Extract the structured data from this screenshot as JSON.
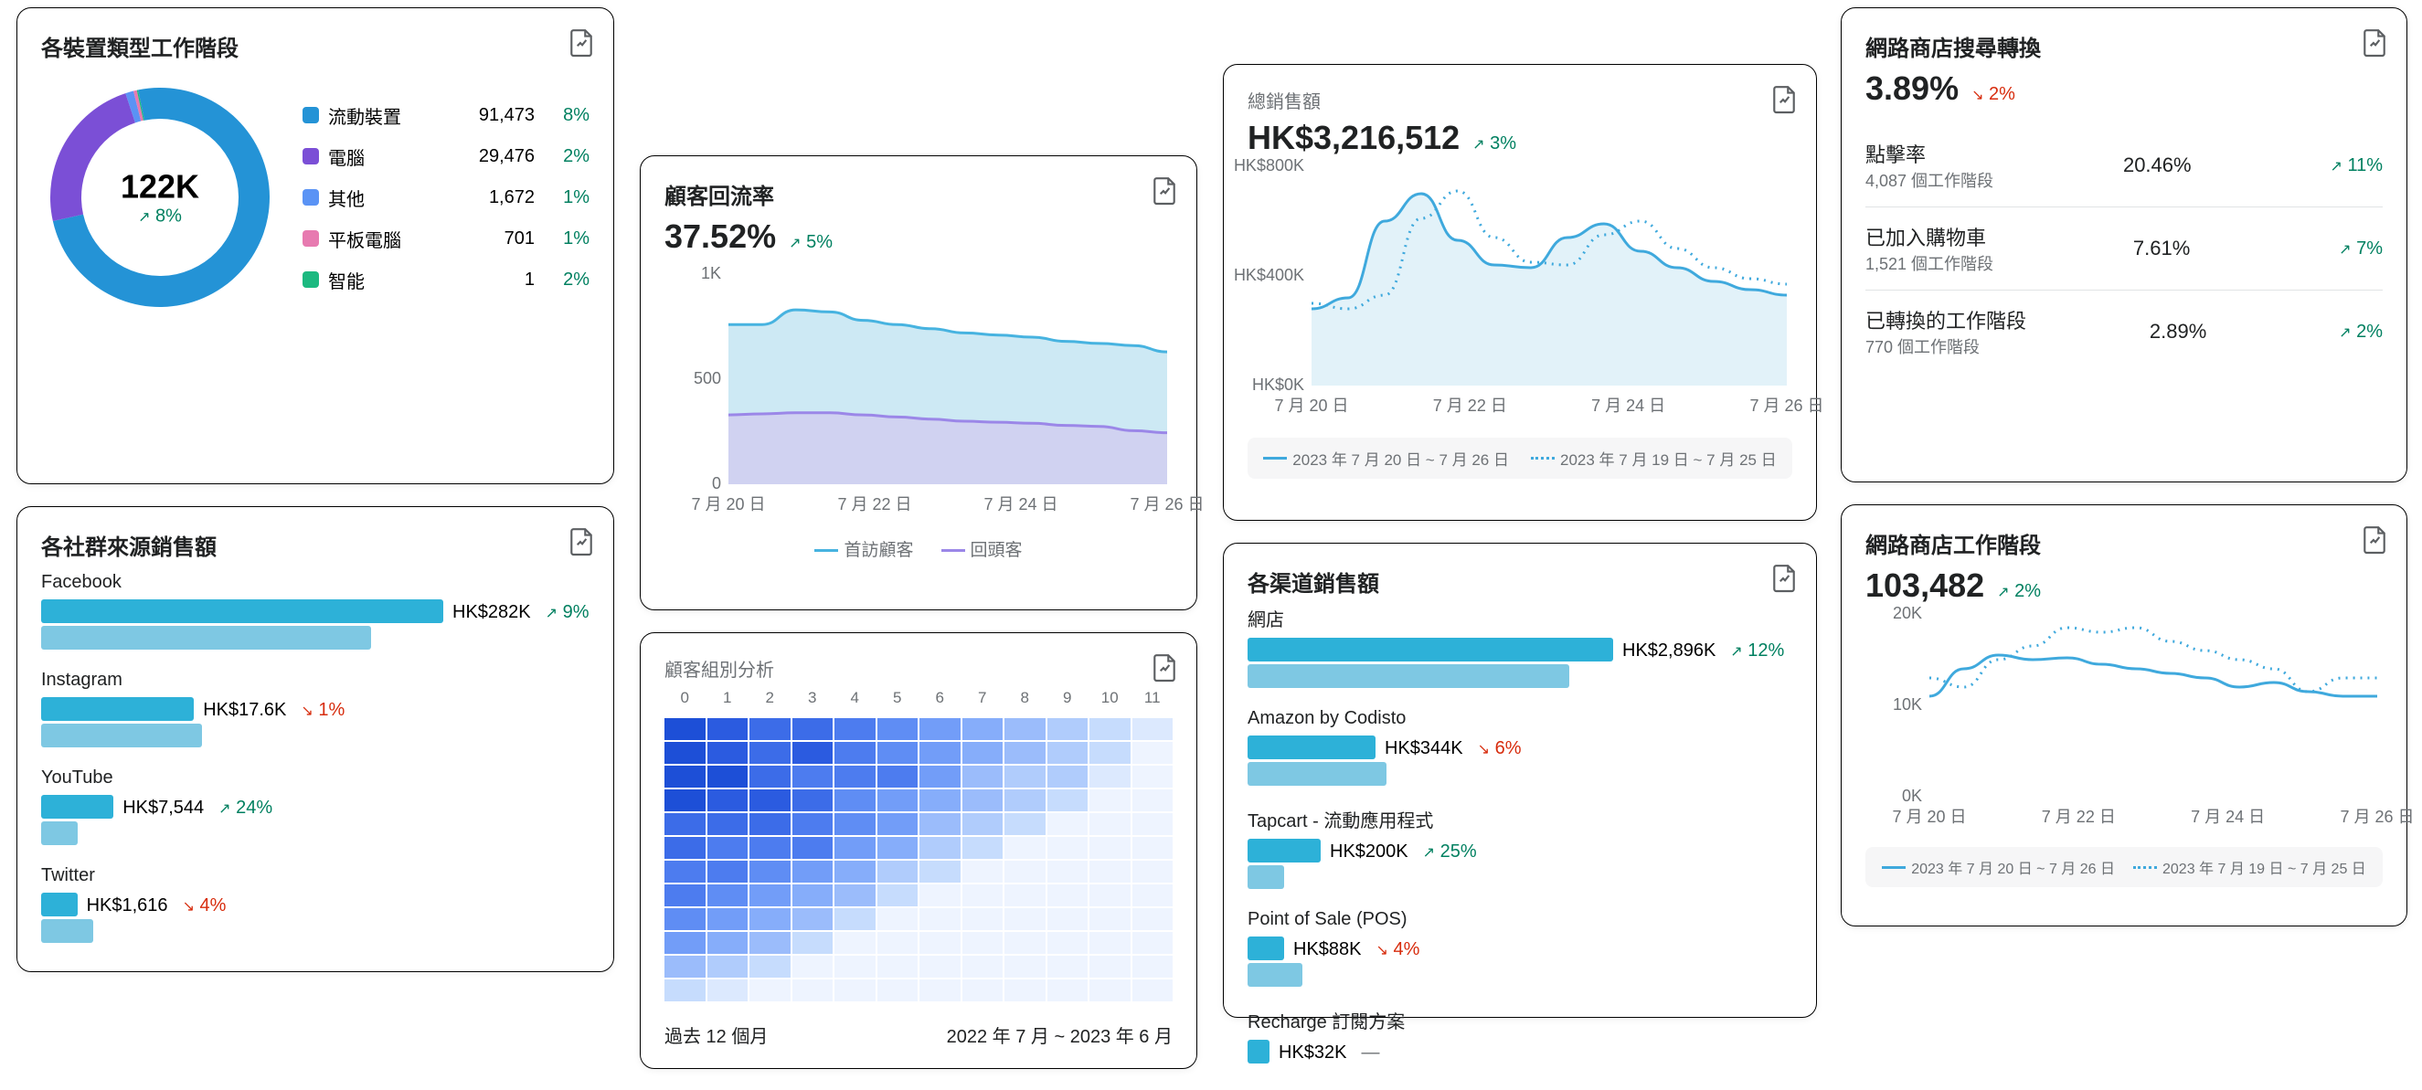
{
  "colors": {
    "text": "#202223",
    "muted": "#6d7175",
    "up": "#008060",
    "down": "#d72c0d",
    "bg": "#ffffff"
  },
  "donut": {
    "title": "各裝置類型工作階段",
    "total_label": "122K",
    "total_change": "8%",
    "change_dir": "up",
    "segments": [
      {
        "name": "流動裝置",
        "value": "91,473",
        "pct": "8%",
        "color": "#2493d6",
        "frac": 0.747
      },
      {
        "name": "電腦",
        "value": "29,476",
        "pct": "2%",
        "color": "#7b4fd6",
        "frac": 0.234
      },
      {
        "name": "其他",
        "value": "1,672",
        "pct": "1%",
        "color": "#5a93f5",
        "frac": 0.012
      },
      {
        "name": "平板電腦",
        "value": "701",
        "pct": "1%",
        "color": "#e77ab0",
        "frac": 0.005
      },
      {
        "name": "智能",
        "value": "1",
        "pct": "2%",
        "color": "#1cb980",
        "frac": 0.002
      }
    ],
    "donut_bg": "#ffffff",
    "ring_width": 34
  },
  "social": {
    "title": "各社群來源銷售額",
    "bar_color_a": "#2db1d8",
    "bar_color_b": "#7ec8e3",
    "max_width": 440,
    "items": [
      {
        "name": "Facebook",
        "value": "HK$282K",
        "delta": "9%",
        "dir": "up",
        "a": 1.0,
        "b": 0.82
      },
      {
        "name": "Instagram",
        "value": "HK$17.6K",
        "delta": "1%",
        "dir": "down",
        "a": 0.38,
        "b": 0.4
      },
      {
        "name": "YouTube",
        "value": "HK$7,544",
        "delta": "24%",
        "dir": "up",
        "a": 0.18,
        "b": 0.09
      },
      {
        "name": "Twitter",
        "value": "HK$1,616",
        "delta": "4%",
        "dir": "down",
        "a": 0.09,
        "b": 0.13
      }
    ]
  },
  "return": {
    "title": "顧客回流率",
    "value": "37.52%",
    "delta": "5%",
    "dir": "up",
    "ylabels": [
      "1K",
      "500",
      "0"
    ],
    "ymax": 1000,
    "xlabels": [
      "7 月 20 日",
      "7 月 22 日",
      "7 月 24 日",
      "7 月 26 日"
    ],
    "series": [
      {
        "name": "首訪顧客",
        "color": "#47b3e0",
        "fill": "#b8e0f0",
        "data": [
          760,
          760,
          830,
          820,
          780,
          760,
          740,
          720,
          710,
          700,
          680,
          670,
          660,
          630
        ]
      },
      {
        "name": "回頭客",
        "color": "#9b87e8",
        "fill": "#d1c8f0",
        "data": [
          330,
          335,
          340,
          340,
          330,
          320,
          310,
          300,
          295,
          290,
          280,
          275,
          255,
          245
        ]
      }
    ]
  },
  "cohort": {
    "title": "顧客組別分析",
    "cols": 12,
    "headers": [
      "0",
      "1",
      "2",
      "3",
      "4",
      "5",
      "6",
      "7",
      "8",
      "9",
      "10",
      "11"
    ],
    "footer_left": "過去 12 個月",
    "footer_right": "2022 年 7 月 ~ 2023 年 6 月",
    "color_scale": [
      "#1d4fd7",
      "#2b5be0",
      "#3c6ce8",
      "#4d7cef",
      "#5f8df4",
      "#729df8",
      "#86adfa",
      "#9bbcfb",
      "#b0ccfc",
      "#c6dcfd",
      "#dce9fe",
      "#eef4ff"
    ],
    "rows": [
      [
        0,
        1,
        2,
        2,
        3,
        4,
        5,
        6,
        7,
        8,
        9,
        10
      ],
      [
        0,
        1,
        2,
        1,
        3,
        4,
        5,
        6,
        7,
        8,
        9,
        11
      ],
      [
        0,
        0,
        2,
        3,
        3,
        3,
        5,
        7,
        8,
        8,
        10,
        11
      ],
      [
        0,
        1,
        1,
        2,
        4,
        5,
        6,
        7,
        8,
        9,
        11,
        11
      ],
      [
        2,
        2,
        2,
        3,
        4,
        5,
        7,
        8,
        9,
        11,
        11,
        11
      ],
      [
        2,
        3,
        3,
        3,
        5,
        6,
        8,
        9,
        11,
        11,
        11,
        11
      ],
      [
        3,
        3,
        4,
        5,
        6,
        8,
        9,
        11,
        11,
        11,
        11,
        11
      ],
      [
        3,
        4,
        5,
        6,
        7,
        9,
        11,
        11,
        11,
        11,
        11,
        11
      ],
      [
        4,
        5,
        6,
        7,
        9,
        11,
        11,
        11,
        11,
        11,
        11,
        11
      ],
      [
        5,
        6,
        7,
        9,
        11,
        11,
        11,
        11,
        11,
        11,
        11,
        11
      ],
      [
        7,
        8,
        9,
        11,
        11,
        11,
        11,
        11,
        11,
        11,
        11,
        11
      ],
      [
        9,
        10,
        11,
        11,
        11,
        11,
        11,
        11,
        11,
        11,
        11,
        11
      ]
    ]
  },
  "total": {
    "title": "總銷售額",
    "value": "HK$3,216,512",
    "delta": "3%",
    "dir": "up",
    "ylabels": [
      "HK$800K",
      "HK$400K",
      "HK$0K"
    ],
    "ymax": 800,
    "xlabels": [
      "7 月 20 日",
      "7 月 22 日",
      "7 月 24 日",
      "7 月 26 日"
    ],
    "series": [
      {
        "name": "2023 年 7 月 20 日 ~ 7 月 26 日",
        "style": "solid",
        "color": "#3fa9dd",
        "fill": "#d5ecf7",
        "data": [
          280,
          320,
          600,
          700,
          530,
          440,
          430,
          540,
          590,
          490,
          430,
          380,
          350,
          330
        ]
      },
      {
        "name": "2023 年 7 月 19 日 ~ 7 月 25 日",
        "style": "dotted",
        "color": "#3fa9dd",
        "data": [
          300,
          280,
          330,
          610,
          710,
          540,
          450,
          440,
          550,
          600,
          500,
          430,
          390,
          370
        ]
      }
    ]
  },
  "channel": {
    "title": "各渠道銷售額",
    "bar_color_a": "#2db1d8",
    "bar_color_b": "#7ec8e3",
    "max_width": 400,
    "items": [
      {
        "name": "網店",
        "value": "HK$2,896K",
        "delta": "12%",
        "dir": "up",
        "a": 1.0,
        "b": 0.88
      },
      {
        "name": "Amazon by Codisto",
        "value": "HK$344K",
        "delta": "6%",
        "dir": "down",
        "a": 0.35,
        "b": 0.38
      },
      {
        "name": "Tapcart - 流動應用程式",
        "value": "HK$200K",
        "delta": "25%",
        "dir": "up",
        "a": 0.2,
        "b": 0.1
      },
      {
        "name": "Point of Sale (POS)",
        "value": "HK$88K",
        "delta": "4%",
        "dir": "down",
        "a": 0.1,
        "b": 0.15
      },
      {
        "name": "Recharge 訂閱方案",
        "value": "HK$32K",
        "delta": "—",
        "dir": "neutral",
        "a": 0.06,
        "b": 0.0
      }
    ]
  },
  "search": {
    "title": "網路商店搜尋轉換",
    "value": "3.89%",
    "delta": "2%",
    "dir": "down",
    "rows": [
      {
        "name": "點擊率",
        "sub": "4,087 個工作階段",
        "val": "20.46%",
        "delta": "11%",
        "dir": "up"
      },
      {
        "name": "已加入購物車",
        "sub": "1,521 個工作階段",
        "val": "7.61%",
        "delta": "7%",
        "dir": "up"
      },
      {
        "name": "已轉換的工作階段",
        "sub": "770 個工作階段",
        "val": "2.89%",
        "delta": "2%",
        "dir": "up"
      }
    ]
  },
  "sessions": {
    "title": "網路商店工作階段",
    "value": "103,482",
    "delta": "2%",
    "dir": "up",
    "ylabels": [
      "20K",
      "10K",
      "0K"
    ],
    "ymax": 20,
    "xlabels": [
      "7 月 20 日",
      "7 月 22 日",
      "7 月 24 日",
      "7 月 26 日"
    ],
    "series": [
      {
        "name": "2023 年 7 月 20 日 ~ 7 月 26 日",
        "style": "solid",
        "color": "#3fa9dd",
        "data": [
          11,
          14,
          15.5,
          15,
          15.2,
          14.5,
          14,
          13.5,
          13,
          12,
          12.5,
          11.5,
          11,
          11
        ]
      },
      {
        "name": "2023 年 7 月 19 日 ~ 7 月 25 日",
        "style": "dotted",
        "color": "#3fa9dd",
        "data": [
          13,
          12,
          15,
          16.5,
          18.5,
          18,
          18.5,
          17,
          16,
          15,
          14,
          11.5,
          13,
          13
        ]
      }
    ]
  }
}
